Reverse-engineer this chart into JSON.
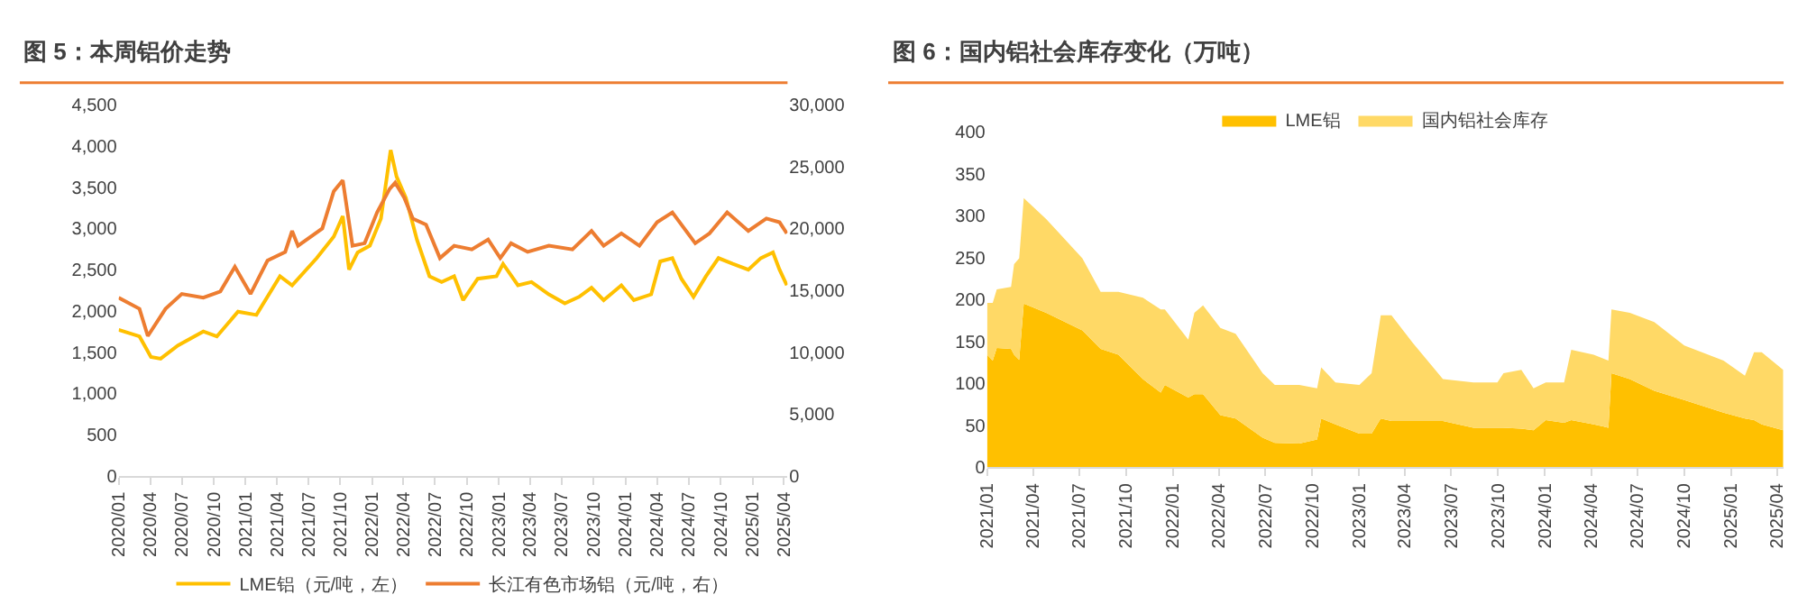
{
  "chart_data": [
    {
      "type": "line",
      "title": "图 5：本周铝价走势",
      "legend": "bottom",
      "grid": false,
      "line_style": "solid",
      "marker": "none",
      "xlim": [
        "2020-01-01",
        "2025-04-12"
      ],
      "xticks": [
        {
          "value": "2020-01",
          "label": "2020/01"
        },
        {
          "value": "2020-04",
          "label": "2020/04"
        },
        {
          "value": "2020-07",
          "label": "2020/07"
        },
        {
          "value": "2020-10",
          "label": "2020/10"
        },
        {
          "value": "2021-01",
          "label": "2021/01"
        },
        {
          "value": "2021-04",
          "label": "2021/04"
        },
        {
          "value": "2021-07",
          "label": "2021/07"
        },
        {
          "value": "2021-10",
          "label": "2021/10"
        },
        {
          "value": "2022-01",
          "label": "2022/01"
        },
        {
          "value": "2022-04",
          "label": "2022/04"
        },
        {
          "value": "2022-07",
          "label": "2022/07"
        },
        {
          "value": "2022-10",
          "label": "2022/10"
        },
        {
          "value": "2023-01",
          "label": "2023/01"
        },
        {
          "value": "2023-04",
          "label": "2023/04"
        },
        {
          "value": "2023-07",
          "label": "2023/07"
        },
        {
          "value": "2023-10",
          "label": "2023/10"
        },
        {
          "value": "2024-01",
          "label": "2024/01"
        },
        {
          "value": "2024-04",
          "label": "2024/04"
        },
        {
          "value": "2024-07",
          "label": "2024/07"
        },
        {
          "value": "2024-10",
          "label": "2024/10"
        },
        {
          "value": "2025-01",
          "label": "2025/01"
        },
        {
          "value": "2025-04",
          "label": "2025/04"
        }
      ],
      "ylim": [
        0,
        4500
      ],
      "yticks": [
        0,
        500,
        {
          "value": 1000,
          "label": "1,000"
        },
        {
          "value": 1500,
          "label": "1,500"
        },
        {
          "value": 2000,
          "label": "2,000"
        },
        {
          "value": 2500,
          "label": "2,500"
        },
        {
          "value": 3000,
          "label": "3,000"
        },
        {
          "value": 3500,
          "label": "3,500"
        },
        {
          "value": 4000,
          "label": "4,000"
        },
        {
          "value": 4500,
          "label": "4,500"
        }
      ],
      "y2lim": [
        0,
        30000
      ],
      "y2ticks": [
        0,
        {
          "value": 5000,
          "label": "5,000"
        },
        {
          "value": 10000,
          "label": "10,000"
        },
        {
          "value": 15000,
          "label": "15,000"
        },
        {
          "value": 20000,
          "label": "20,000"
        },
        {
          "value": 25000,
          "label": "25,000"
        },
        {
          "value": 30000,
          "label": "30,000"
        }
      ],
      "series": [
        {
          "name": "LME铝（元/吨，左）",
          "color": "#ffc000",
          "x": [
            "2020-01-01",
            "2020-03-01",
            "2020-04-03",
            "2020-05-01",
            "2020-06-20",
            "2020-09-01",
            "2020-10-10",
            "2020-12-10",
            "2021-02-01",
            "2021-04-10",
            "2021-05-15",
            "2021-07-25",
            "2021-09-12",
            "2021-10-08",
            "2021-10-26",
            "2021-11-20",
            "2021-12-25",
            "2022-01-26",
            "2022-02-23",
            "2022-03-12",
            "2022-04-08",
            "2022-05-10",
            "2022-06-15",
            "2022-07-20",
            "2022-08-25",
            "2022-09-20",
            "2022-11-01",
            "2022-12-25",
            "2023-01-13",
            "2023-02-25",
            "2023-04-05",
            "2023-05-25",
            "2023-07-10",
            "2023-08-20",
            "2023-09-25",
            "2023-10-30",
            "2023-12-20",
            "2024-01-25",
            "2024-03-15",
            "2024-04-10",
            "2024-05-15",
            "2024-06-10",
            "2024-07-15",
            "2024-08-20",
            "2024-09-25",
            "2024-11-05",
            "2024-12-20",
            "2025-01-25",
            "2025-03-01",
            "2025-03-20",
            "2025-04-10"
          ],
          "values": [
            1770,
            1690,
            1440,
            1420,
            1580,
            1750,
            1690,
            1990,
            1950,
            2420,
            2310,
            2640,
            2900,
            3150,
            2500,
            2710,
            2790,
            3120,
            3950,
            3630,
            3370,
            2860,
            2420,
            2350,
            2420,
            2130,
            2390,
            2420,
            2570,
            2310,
            2350,
            2200,
            2090,
            2170,
            2280,
            2130,
            2310,
            2130,
            2200,
            2600,
            2640,
            2390,
            2170,
            2420,
            2640,
            2570,
            2500,
            2640,
            2710,
            2500,
            2310
          ]
        },
        {
          "name": "长江有色市场铝（元/吨，右）",
          "color": "#ed7d31",
          "axis": "y2",
          "x": [
            "2020-01-01",
            "2020-03-01",
            "2020-03-25",
            "2020-05-15",
            "2020-07-01",
            "2020-09-01",
            "2020-10-20",
            "2020-12-01",
            "2021-01-15",
            "2021-03-05",
            "2021-04-25",
            "2021-05-15",
            "2021-06-01",
            "2021-08-10",
            "2021-09-12",
            "2021-10-08",
            "2021-11-05",
            "2021-12-10",
            "2022-01-15",
            "2022-02-20",
            "2022-03-08",
            "2022-04-03",
            "2022-04-28",
            "2022-06-05",
            "2022-07-15",
            "2022-08-25",
            "2022-10-15",
            "2022-12-01",
            "2023-01-05",
            "2023-02-05",
            "2023-03-25",
            "2023-05-25",
            "2023-08-01",
            "2023-09-25",
            "2023-10-30",
            "2023-12-20",
            "2024-02-10",
            "2024-04-01",
            "2024-05-15",
            "2024-07-20",
            "2024-08-30",
            "2024-10-20",
            "2024-12-20",
            "2025-02-10",
            "2025-03-20",
            "2025-04-10"
          ],
          "values": [
            14400,
            13500,
            11300,
            13500,
            14700,
            14400,
            14900,
            16900,
            14700,
            17400,
            18100,
            19800,
            18600,
            20000,
            23000,
            23900,
            18600,
            18800,
            21300,
            23200,
            23700,
            22500,
            20800,
            20300,
            17600,
            18600,
            18300,
            19100,
            17600,
            18800,
            18100,
            18600,
            18300,
            19800,
            18600,
            19600,
            18600,
            20500,
            21300,
            18800,
            19600,
            21300,
            19800,
            20800,
            20500,
            19600
          ]
        }
      ]
    },
    {
      "type": "area",
      "title": "图 6：国内铝社会库存变化（万吨）",
      "legend": "top",
      "grid": false,
      "stacked": true,
      "xlim": [
        "2021-01-01",
        "2025-04-14"
      ],
      "xticks": [
        {
          "value": "2021-01",
          "label": "2021/01"
        },
        {
          "value": "2021-04",
          "label": "2021/04"
        },
        {
          "value": "2021-07",
          "label": "2021/07"
        },
        {
          "value": "2021-10",
          "label": "2021/10"
        },
        {
          "value": "2022-01",
          "label": "2022/01"
        },
        {
          "value": "2022-04",
          "label": "2022/04"
        },
        {
          "value": "2022-07",
          "label": "2022/07"
        },
        {
          "value": "2022-10",
          "label": "2022/10"
        },
        {
          "value": "2023-01",
          "label": "2023/01"
        },
        {
          "value": "2023-04",
          "label": "2023/04"
        },
        {
          "value": "2023-07",
          "label": "2023/07"
        },
        {
          "value": "2023-10",
          "label": "2023/10"
        },
        {
          "value": "2024-01",
          "label": "2024/01"
        },
        {
          "value": "2024-04",
          "label": "2024/04"
        },
        {
          "value": "2024-07",
          "label": "2024/07"
        },
        {
          "value": "2024-10",
          "label": "2024/10"
        },
        {
          "value": "2025-01",
          "label": "2025/01"
        },
        {
          "value": "2025-04",
          "label": "2025/04"
        }
      ],
      "ylim": [
        0,
        400
      ],
      "yticks": [
        0,
        50,
        100,
        150,
        200,
        250,
        300,
        350,
        400
      ],
      "x": [
        "2021-01-01",
        "2021-01-12",
        "2021-01-20",
        "2021-02-17",
        "2021-02-23",
        "2021-03-05",
        "2021-03-14",
        "2021-04-27",
        "2021-07-07",
        "2021-08-12",
        "2021-09-16",
        "2021-11-03",
        "2021-12-08",
        "2021-12-16",
        "2022-01-31",
        "2022-02-12",
        "2022-03-01",
        "2022-04-04",
        "2022-05-04",
        "2022-06-26",
        "2022-07-20",
        "2022-09-06",
        "2022-10-11",
        "2022-10-19",
        "2022-11-16",
        "2023-01-02",
        "2023-01-26",
        "2023-02-13",
        "2023-03-06",
        "2023-04-17",
        "2023-06-15",
        "2023-08-14",
        "2023-09-30",
        "2023-10-12",
        "2023-11-16",
        "2023-12-10",
        "2024-01-03",
        "2024-02-08",
        "2024-02-22",
        "2024-04-06",
        "2024-05-05",
        "2024-05-11",
        "2024-06-16",
        "2024-08-03",
        "2024-10-01",
        "2024-12-17",
        "2025-01-28",
        "2025-02-15",
        "2025-03-02",
        "2025-04-13"
      ],
      "series": [
        {
          "name": "LME铝",
          "color": "#ffc000",
          "values": [
            134,
            127,
            142,
            141,
            134,
            128,
            195,
            184,
            163,
            141,
            134,
            105,
            89,
            98,
            83,
            87,
            87,
            62,
            58,
            35,
            29,
            28,
            33,
            58,
            51,
            40,
            40,
            58,
            55,
            55,
            55,
            47,
            47,
            47,
            46,
            44,
            56,
            53,
            56,
            51,
            47,
            112,
            105,
            91,
            80,
            65,
            58,
            56,
            51,
            44
          ]
        },
        {
          "name": "国内铝社会库存",
          "color": "#ffd966",
          "values": [
            62,
            69,
            70,
            74,
            108,
            121,
            126,
            112,
            86,
            68,
            75,
            97,
            99,
            90,
            69,
            97,
            106,
            104,
            101,
            77,
            69,
            70,
            61,
            61,
            50,
            58,
            72,
            123,
            126,
            93,
            50,
            54,
            54,
            65,
            70,
            50,
            45,
            48,
            84,
            83,
            80,
            76,
            79,
            82,
            65,
            62,
            51,
            81,
            86,
            72
          ]
        }
      ]
    }
  ]
}
